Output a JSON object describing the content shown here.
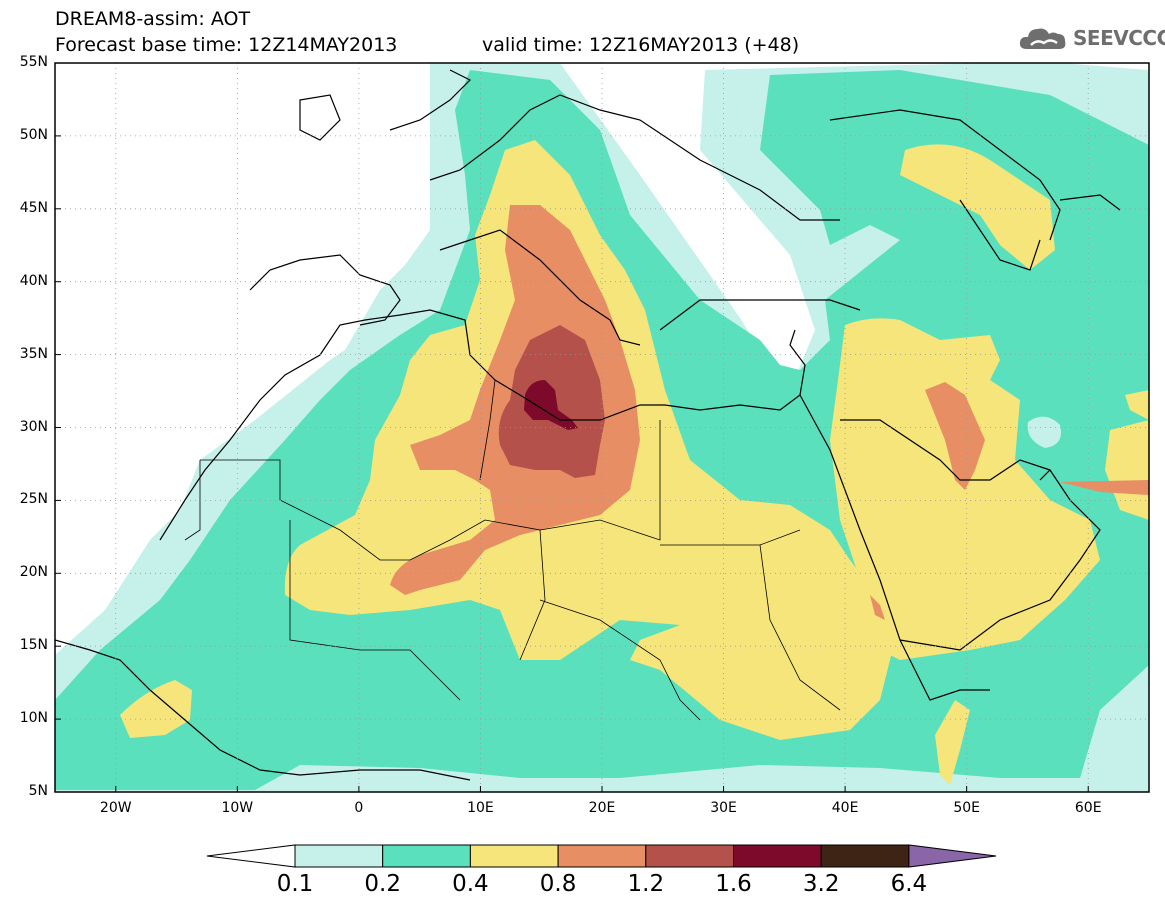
{
  "header": {
    "title_line1": "DREAM8-assim: AOT",
    "title_line2": "Forecast base time: 12Z14MAY2013",
    "title_line3": "valid time: 12Z16MAY2013 (+48)",
    "logo_text": "SEEVCCC",
    "logo_icon": "cloud-icon"
  },
  "map": {
    "lat_labels": [
      "55N",
      "50N",
      "45N",
      "40N",
      "35N",
      "30N",
      "25N",
      "20N",
      "15N",
      "10N",
      "5N"
    ],
    "lon_labels": [
      "20W",
      "10W",
      "0",
      "10E",
      "20E",
      "30E",
      "40E",
      "50E",
      "60E"
    ],
    "lat_values": [
      55,
      50,
      45,
      40,
      35,
      30,
      25,
      20,
      15,
      10,
      5
    ],
    "lon_values": [
      -20,
      -10,
      0,
      10,
      20,
      30,
      40,
      50,
      60
    ],
    "extent": {
      "lon_min": -25,
      "lon_max": 65,
      "lat_min": 5,
      "lat_max": 55
    }
  },
  "colorbar": {
    "levels": [
      "0.1",
      "0.2",
      "0.4",
      "0.8",
      "1.2",
      "1.6",
      "3.2",
      "6.4"
    ],
    "colors": [
      "#ffffff",
      "#c6f0ea",
      "#5ae0bc",
      "#f5e57a",
      "#e88e64",
      "#b3514a",
      "#7d0a2a",
      "#3e2414",
      "#8a66a8"
    ]
  },
  "colors": {
    "c0": "#ffffff",
    "c1": "#c6f0ea",
    "c2": "#5ae0bc",
    "c3": "#f5e57a",
    "c4": "#e88e64",
    "c5": "#b3514a",
    "c6": "#7d0a2a"
  }
}
